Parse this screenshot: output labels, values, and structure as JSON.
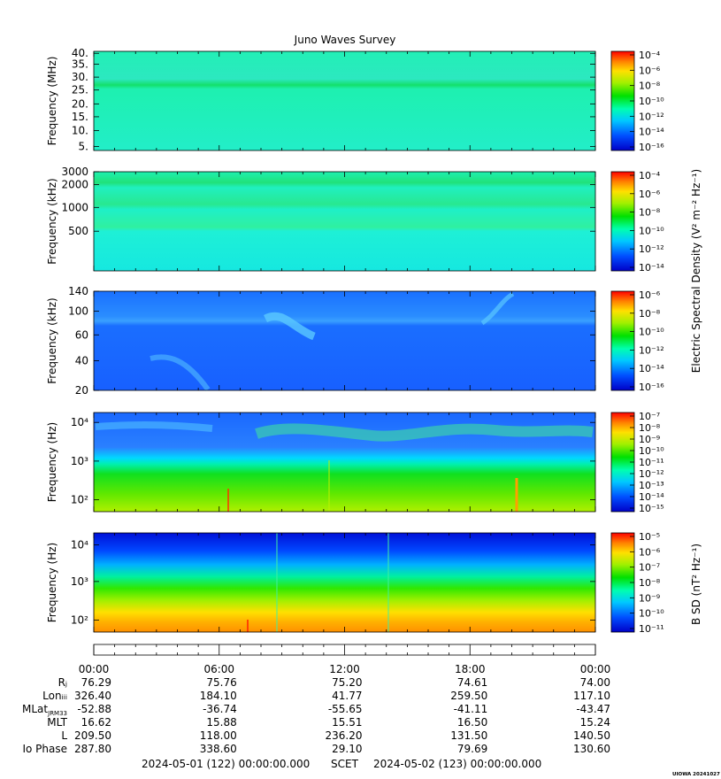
{
  "title": "Juno Waves Survey",
  "footer": {
    "start": "2024-05-01 (122) 00:00:00.000",
    "center": "SCET",
    "end": "2024-05-02 (123) 00:00:00.000",
    "credit": "UIOWA 20241027"
  },
  "shared_colorbar_label": "Electric Spectral Density (V² m⁻² Hz⁻¹)",
  "chart_data": [
    {
      "type": "heatmap",
      "ylabel": "Frequency (MHz)",
      "yticks": [
        "5.",
        "10.",
        "15.",
        "20.",
        "25.",
        "30.",
        "35.",
        "40."
      ],
      "ylim": [
        3.5,
        41
      ],
      "colorbar": {
        "ticks": [
          "10⁻⁴",
          "10⁻⁶",
          "10⁻⁸",
          "10⁻¹⁰",
          "10⁻¹²",
          "10⁻¹⁴",
          "10⁻¹⁶"
        ]
      }
    },
    {
      "type": "heatmap",
      "ylabel": "Frequency (kHz)",
      "yticks": [
        "500",
        "1000",
        "2000",
        "3000"
      ],
      "ylim": [
        150,
        3000
      ],
      "scale": "log",
      "colorbar": {
        "ticks": [
          "10⁻⁴",
          "10⁻⁶",
          "10⁻⁸",
          "10⁻¹⁰",
          "10⁻¹²",
          "10⁻¹⁴"
        ]
      }
    },
    {
      "type": "heatmap",
      "ylabel": "Frequency (kHz)",
      "yticks": [
        "20",
        "40",
        "60",
        "100",
        "140"
      ],
      "ylim": [
        20,
        140
      ],
      "scale": "log",
      "colorbar": {
        "ticks": [
          "10⁻⁶",
          "10⁻⁸",
          "10⁻¹⁰",
          "10⁻¹²",
          "10⁻¹⁴",
          "10⁻¹⁶"
        ]
      }
    },
    {
      "type": "heatmap",
      "ylabel": "Frequency (Hz)",
      "yticks": [
        "10²",
        "10³",
        "10⁴"
      ],
      "ylim": [
        50,
        20000
      ],
      "scale": "log",
      "colorbar": {
        "ticks": [
          "10⁻⁷",
          "10⁻⁸",
          "10⁻⁹",
          "10⁻¹⁰",
          "10⁻¹¹",
          "10⁻¹²",
          "10⁻¹³",
          "10⁻¹⁴",
          "10⁻¹⁵"
        ]
      }
    },
    {
      "type": "heatmap",
      "ylabel": "Frequency (Hz)",
      "yticks": [
        "10²",
        "10³",
        "10⁴"
      ],
      "ylim": [
        50,
        20000
      ],
      "scale": "log",
      "colorbar": {
        "label": "B SD (nT² Hz⁻¹)",
        "ticks": [
          "10⁻⁵",
          "10⁻⁶",
          "10⁻⁷",
          "10⁻⁸",
          "10⁻⁹",
          "10⁻¹⁰",
          "10⁻¹¹"
        ]
      }
    }
  ],
  "time_axis": {
    "ticks": [
      "00:00",
      "06:00",
      "12:00",
      "18:00",
      "00:00"
    ]
  },
  "ephemeris": [
    {
      "label": "Rⱼ",
      "values": [
        "76.29",
        "75.76",
        "75.20",
        "74.61",
        "74.00"
      ]
    },
    {
      "label": "Lonᵢᵢᵢ",
      "values": [
        "326.40",
        "184.10",
        "41.77",
        "259.50",
        "117.10"
      ]
    },
    {
      "label": "MLat",
      "sub": "JRM33",
      "values": [
        "-52.88",
        "-36.74",
        "-55.65",
        "-41.11",
        "-43.47"
      ]
    },
    {
      "label": "MLT",
      "values": [
        "16.62",
        "15.88",
        "15.51",
        "16.50",
        "15.24"
      ]
    },
    {
      "label": "L",
      "values": [
        "209.50",
        "118.00",
        "236.20",
        "131.50",
        "140.50"
      ]
    },
    {
      "label": "Io Phase",
      "values": [
        "287.80",
        "338.60",
        "29.10",
        "79.69",
        "130.60"
      ]
    }
  ]
}
